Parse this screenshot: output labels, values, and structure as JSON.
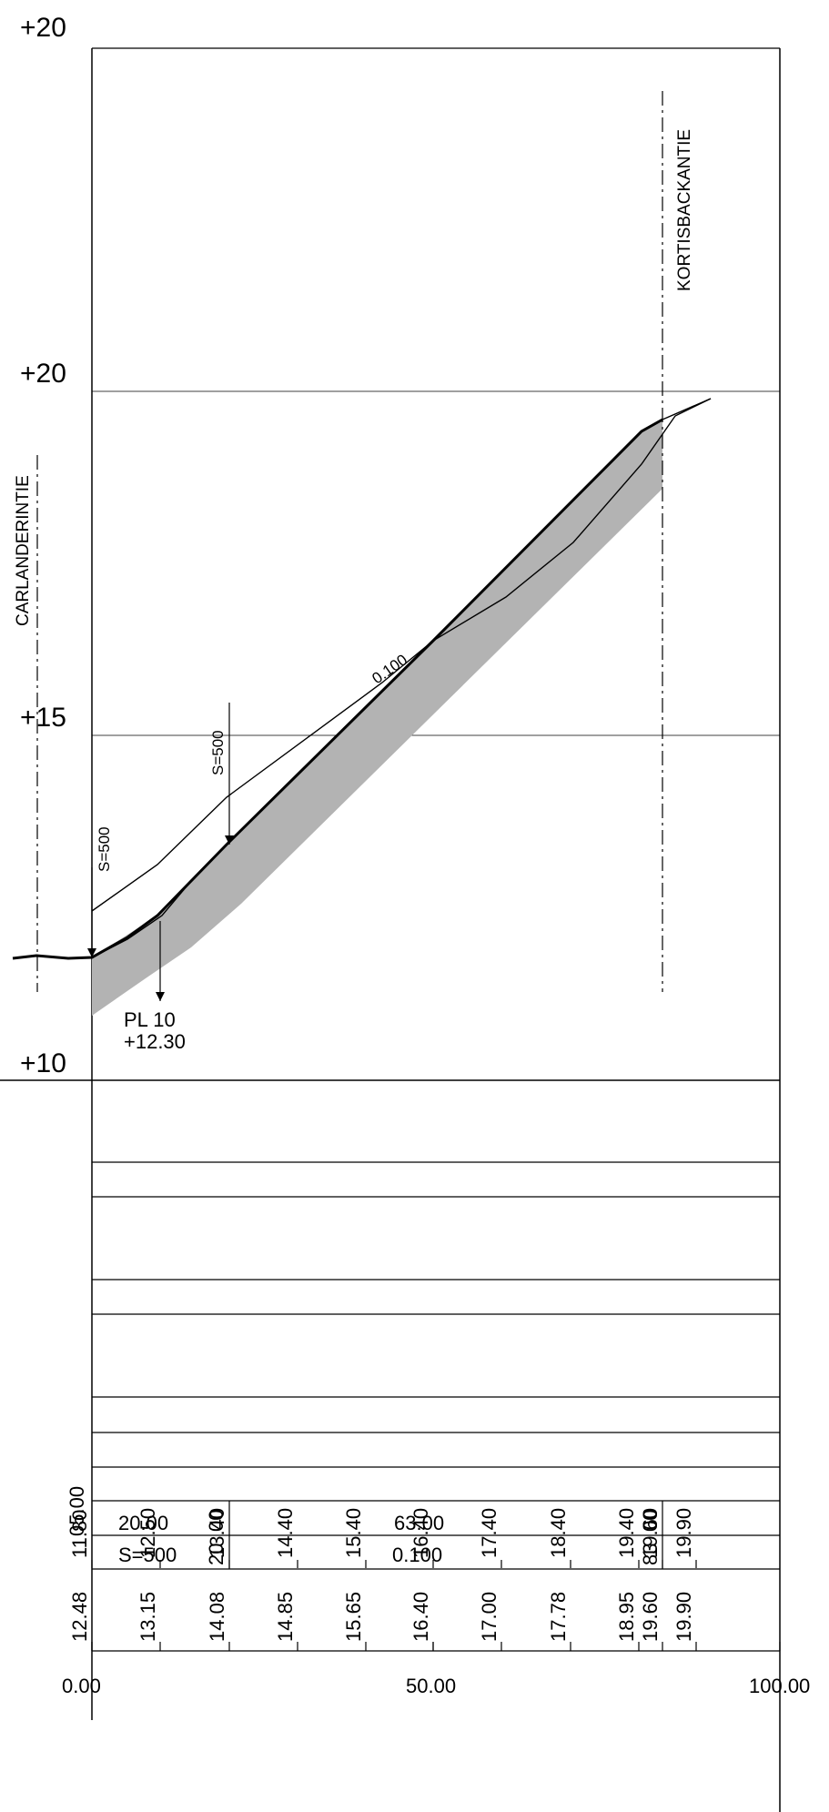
{
  "profile": {
    "elevation_labels": [
      "+20",
      "+20",
      "+15",
      "+10"
    ],
    "markers": {
      "left_line_label": "CARLANDERINTIE",
      "right_line_label": "KORTISBACKANTIE"
    },
    "annotations": {
      "grade": "0.100",
      "vc_left": "S=500",
      "vc_right": "S=500",
      "pl_line1": "PL  10",
      "pl_line2": "+12.30"
    }
  },
  "band_table": {
    "lengths_row": {
      "start": "05.00",
      "seg1": "20.00",
      "tick1": "00",
      "seg2": "63.00",
      "tick2": "00"
    },
    "grades_row": {
      "curve": "S=500",
      "pt1": "20",
      "grade": "0.100",
      "pt2": "83"
    },
    "design_elevations": [
      "11.80",
      "12.50",
      "13.40",
      "14.40",
      "15.40",
      "16.40",
      "17.40",
      "18.40",
      "19.40",
      "19.60",
      "19.90"
    ],
    "ground_elevations": [
      "12.48",
      "13.15",
      "14.08",
      "14.85",
      "15.65",
      "16.40",
      "17.00",
      "17.78",
      "18.95",
      "19.60",
      "19.90"
    ],
    "stations": [
      "0.00",
      "50.00",
      "100.00"
    ]
  },
  "colors": {
    "line": "#000000",
    "fill": "#b3b3b3"
  }
}
